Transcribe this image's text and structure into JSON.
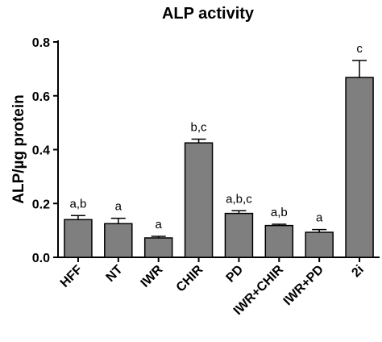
{
  "chart_data": {
    "type": "bar",
    "title": "ALP activity",
    "xlabel": "",
    "ylabel": "ALP/µg protein",
    "ylim": [
      0,
      0.8
    ],
    "y_ticks": [
      "0.0",
      "0.2",
      "0.4",
      "0.6",
      "0.8"
    ],
    "y_tick_values": [
      0,
      0.2,
      0.4,
      0.6,
      0.8
    ],
    "categories": [
      "HFF",
      "NT",
      "IWR",
      "CHIR",
      "PD",
      "IWR+CHIR",
      "IWR+PD",
      "2i"
    ],
    "values": [
      0.14,
      0.125,
      0.072,
      0.425,
      0.163,
      0.118,
      0.093,
      0.668
    ],
    "errors": [
      0.015,
      0.02,
      0.006,
      0.014,
      0.01,
      0.005,
      0.01,
      0.063
    ],
    "annotations": [
      "a,b",
      "a",
      "a",
      "b,c",
      "a,b,c",
      "a,b",
      "a",
      "c"
    ],
    "grid": false,
    "legend": "none",
    "bar_color": "#7f7f7f",
    "edge_color": "#000000"
  }
}
